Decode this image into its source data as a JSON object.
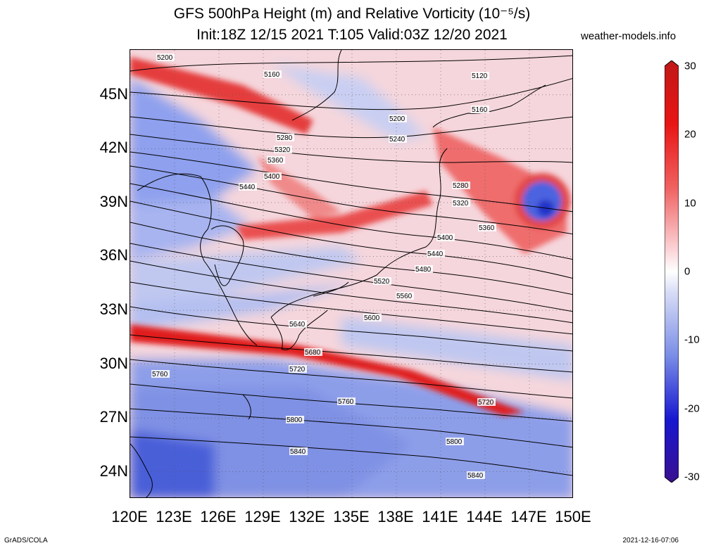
{
  "header": {
    "title_line1": "GFS 500hPa Height (m) and Relative Vorticity (10⁻⁵/s)",
    "title_line2": "Init:18Z 12/15 2021 T:105 Valid:03Z 12/20 2021",
    "site": "weather-models.info"
  },
  "footer": {
    "credit": "GrADS/COLA",
    "timestamp": "2021-12-16-07:06"
  },
  "map": {
    "lon_range": [
      120,
      150
    ],
    "lat_range": [
      22.5,
      47.5
    ],
    "lat_ticks": [
      {
        "lat": 45,
        "label": "45N"
      },
      {
        "lat": 42,
        "label": "42N"
      },
      {
        "lat": 39,
        "label": "39N"
      },
      {
        "lat": 36,
        "label": "36N"
      },
      {
        "lat": 33,
        "label": "33N"
      },
      {
        "lat": 30,
        "label": "30N"
      },
      {
        "lat": 27,
        "label": "27N"
      },
      {
        "lat": 24,
        "label": "24N"
      }
    ],
    "lon_ticks": [
      {
        "lon": 120,
        "label": "120E"
      },
      {
        "lon": 123,
        "label": "123E"
      },
      {
        "lon": 126,
        "label": "126E"
      },
      {
        "lon": 129,
        "label": "129E"
      },
      {
        "lon": 132,
        "label": "132E"
      },
      {
        "lon": 135,
        "label": "135E"
      },
      {
        "lon": 138,
        "label": "138E"
      },
      {
        "lon": 141,
        "label": "141E"
      },
      {
        "lon": 144,
        "label": "144E"
      },
      {
        "lon": 147,
        "label": "147E"
      },
      {
        "lon": 150,
        "label": "150E"
      }
    ],
    "contour_labels": [
      "5120",
      "5160",
      "5200",
      "5240",
      "5280",
      "5320",
      "5360",
      "5400",
      "5440",
      "5480",
      "5520",
      "5560",
      "5600",
      "5640",
      "5680",
      "5720",
      "5760",
      "5800",
      "5840"
    ],
    "colors": {
      "positive_strong": "#e81010",
      "positive_weak": "#f6b7b9",
      "negative_strong": "#1a1ad0",
      "negative_weak": "#b9c2f0",
      "contour": "#000000",
      "coastline": "#000000"
    }
  },
  "colorbar": {
    "ticks": [
      {
        "value": 30,
        "label": "30"
      },
      {
        "value": 20,
        "label": "20"
      },
      {
        "value": 10,
        "label": "10"
      },
      {
        "value": 0,
        "label": "0"
      },
      {
        "value": -10,
        "label": "-10"
      },
      {
        "value": -20,
        "label": "-20"
      },
      {
        "value": -30,
        "label": "-30"
      }
    ],
    "range": [
      -30,
      30
    ]
  }
}
